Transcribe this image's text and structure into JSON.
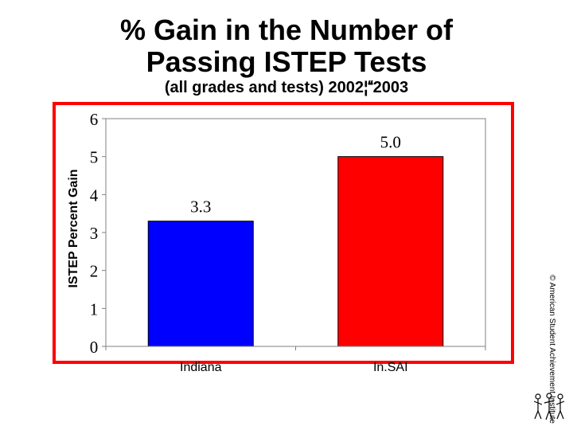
{
  "header": {
    "title_line1": "% Gain in the Number of",
    "title_line2": "Passing ISTEP Tests",
    "subtitle": "(all grades and tests) 2002¦2003"
  },
  "credit": "© American Student Achievement Institute",
  "colors": {
    "frame": "#ff0000",
    "indiana": "#0000ff",
    "insai": "#ff0000"
  },
  "chart_data": {
    "type": "bar",
    "title": "",
    "ylabel": "ISTEP Percent Gain",
    "xlabel": "",
    "ylim": [
      0,
      6
    ],
    "yticks": [
      "0",
      "1",
      "2",
      "3",
      "4",
      "5",
      "6"
    ],
    "categories": [
      "Indiana",
      "In.SAI"
    ],
    "values": [
      3.3,
      5.0
    ],
    "data_labels": [
      "3.3",
      "5.0"
    ],
    "colors": [
      "#0000ff",
      "#ff0000"
    ],
    "grid": false,
    "legend": "none"
  }
}
